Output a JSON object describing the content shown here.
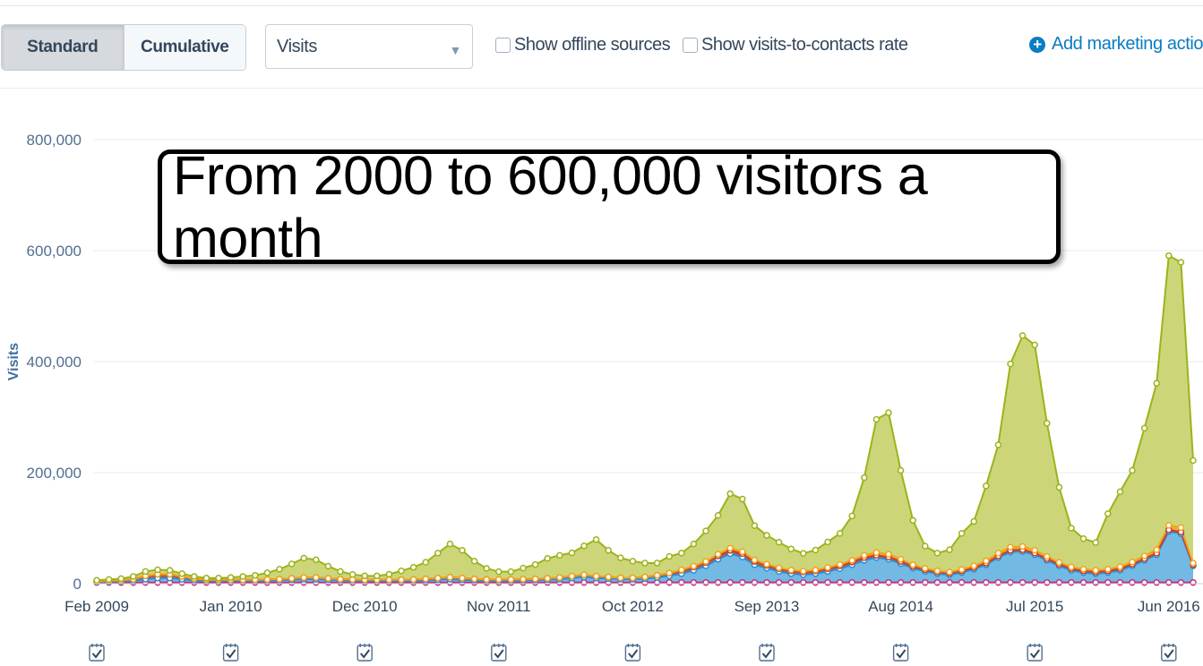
{
  "toolbar": {
    "standard_label": "Standard",
    "cumulative_label": "Cumulative",
    "metric_select": "Visits",
    "offline_label": "Show offline sources",
    "rate_label": "Show visits-to-contacts rate",
    "add_action_label": "Add marketing actio"
  },
  "callout": "From 2000 to 600,000 visitors a month",
  "colors": {
    "organic": "#9cb31a",
    "organic_fill": "#c8d26e",
    "paid": "#f2a31b",
    "social": "#d13b2a",
    "direct": "#2b8fd1",
    "direct_fill": "#66b3e2",
    "other": "#c9287a",
    "grid": "#e4e8ee",
    "axis_title": "#3f6d9e"
  },
  "chart_data": {
    "type": "area",
    "ylabel": "Visits",
    "ylim": [
      0,
      800000
    ],
    "yticks": [
      0,
      200000,
      400000,
      600000,
      800000
    ],
    "ytick_labels": [
      "0",
      "200,000",
      "400,000",
      "600,000",
      "800,000"
    ],
    "xtick_labels": [
      "Feb 2009",
      "Jan 2010",
      "Dec 2010",
      "Nov 2011",
      "Oct 2012",
      "Sep 2013",
      "Aug 2014",
      "Jul 2015",
      "Jun 2016"
    ],
    "xtick_index": [
      0,
      11,
      22,
      33,
      44,
      55,
      66,
      77,
      88
    ],
    "stacked": true,
    "series": [
      {
        "key": "other",
        "values": [
          2000,
          2000,
          2000,
          2000,
          2000,
          2000,
          2000,
          2000,
          2000,
          2000,
          2000,
          2000,
          2000,
          2000,
          2000,
          2000,
          2000,
          2000,
          2000,
          2000,
          2000,
          2000,
          2000,
          2000,
          2000,
          2000,
          2000,
          2000,
          2000,
          2000,
          2000,
          2000,
          2000,
          2000,
          2000,
          2000,
          2000,
          2000,
          2000,
          2000,
          2000,
          2000,
          2000,
          2000,
          2000,
          2000,
          2000,
          2000,
          2000,
          2000,
          2000,
          2000,
          2000,
          2000,
          2000,
          2000,
          2000,
          2000,
          2000,
          2000,
          2000,
          2000,
          2000,
          2000,
          2000,
          2000,
          2000,
          2000,
          2000,
          2000,
          2000,
          2000,
          2000,
          2000,
          2000,
          2000,
          2000,
          2000,
          2000,
          2000,
          2000,
          2000,
          2000,
          2000,
          2000,
          2000,
          2000,
          2000,
          2000,
          2000,
          2000
        ]
      },
      {
        "key": "direct",
        "values": [
          1000,
          1500,
          2000,
          3000,
          6000,
          8000,
          8000,
          6000,
          4000,
          3000,
          3000,
          3000,
          3000,
          3000,
          3500,
          4000,
          5000,
          6000,
          6000,
          5000,
          4000,
          3500,
          3000,
          3000,
          3000,
          3000,
          3500,
          4000,
          5000,
          6000,
          5000,
          4000,
          3500,
          3500,
          3500,
          4000,
          4500,
          5000,
          6000,
          8000,
          10000,
          8000,
          7000,
          6000,
          6000,
          7000,
          9000,
          12000,
          16000,
          22000,
          30000,
          42000,
          52000,
          46000,
          32000,
          26000,
          20000,
          16000,
          14000,
          16000,
          20000,
          25000,
          32000,
          40000,
          45000,
          42000,
          34000,
          26000,
          20000,
          16000,
          14000,
          18000,
          24000,
          32000,
          45000,
          55000,
          56000,
          50000,
          40000,
          30000,
          22000,
          18000,
          16000,
          18000,
          22000,
          30000,
          40000,
          50000,
          92000,
          88000,
          30000
        ]
      },
      {
        "key": "social",
        "values": [
          1000,
          1500,
          2000,
          3000,
          6000,
          7000,
          7000,
          5000,
          3000,
          2000,
          2000,
          2000,
          2000,
          2000,
          2000,
          2000,
          2500,
          3000,
          3000,
          2500,
          2000,
          2000,
          2000,
          2000,
          2000,
          2000,
          2000,
          2500,
          3000,
          3500,
          3000,
          2500,
          2000,
          2000,
          2000,
          2000,
          2000,
          2500,
          3000,
          3500,
          4000,
          3500,
          3000,
          2500,
          2500,
          3000,
          4000,
          5000,
          6000,
          6000,
          6000,
          6000,
          6000,
          6000,
          6000,
          5000,
          5000,
          5000,
          5000,
          5000,
          5000,
          5000,
          5000,
          5000,
          4000,
          4000,
          4000,
          3000,
          3000,
          3000,
          3000,
          3000,
          3000,
          3000,
          3000,
          3000,
          3000,
          3000,
          3000,
          3000,
          3000,
          3000,
          3000,
          3000,
          3000,
          3000,
          3000,
          3000,
          3000,
          3000,
          2000
        ]
      },
      {
        "key": "paid",
        "values": [
          0,
          0,
          0,
          0,
          0,
          0,
          0,
          0,
          0,
          0,
          0,
          0,
          0,
          0,
          0,
          0,
          0,
          0,
          0,
          0,
          0,
          0,
          0,
          0,
          0,
          0,
          0,
          0,
          0,
          0,
          0,
          0,
          0,
          0,
          0,
          0,
          0,
          0,
          0,
          0,
          0,
          0,
          0,
          0,
          0,
          0,
          0,
          0,
          1000,
          1500,
          2000,
          3000,
          4000,
          3500,
          2500,
          2000,
          1500,
          1500,
          1500,
          1500,
          2000,
          2500,
          3000,
          4000,
          5000,
          5000,
          4000,
          3000,
          2500,
          2000,
          2000,
          2500,
          3000,
          4000,
          5000,
          6000,
          6000,
          5000,
          4000,
          3500,
          3000,
          3000,
          3000,
          3000,
          3500,
          4000,
          5000,
          6000,
          8000,
          8000,
          3000
        ]
      },
      {
        "key": "organic",
        "values": [
          2000,
          2500,
          3000,
          5000,
          8000,
          8000,
          7000,
          5000,
          4000,
          3000,
          3000,
          4000,
          6000,
          8000,
          12000,
          18000,
          26000,
          35000,
          32000,
          22000,
          14000,
          9000,
          7000,
          7000,
          10000,
          16000,
          22000,
          30000,
          45000,
          60000,
          50000,
          32000,
          20000,
          14000,
          14000,
          20000,
          26000,
          36000,
          40000,
          42000,
          52000,
          66000,
          48000,
          36000,
          30000,
          25000,
          22000,
          30000,
          30000,
          40000,
          55000,
          70000,
          98000,
          95000,
          62000,
          52000,
          46000,
          38000,
          32000,
          36000,
          46000,
          56000,
          80000,
          140000,
          240000,
          255000,
          160000,
          80000,
          40000,
          32000,
          40000,
          65000,
          80000,
          135000,
          195000,
          330000,
          380000,
          370000,
          240000,
          135000,
          70000,
          55000,
          50000,
          100000,
          135000,
          165000,
          230000,
          300000,
          486000,
          478000,
          185000
        ]
      }
    ]
  }
}
